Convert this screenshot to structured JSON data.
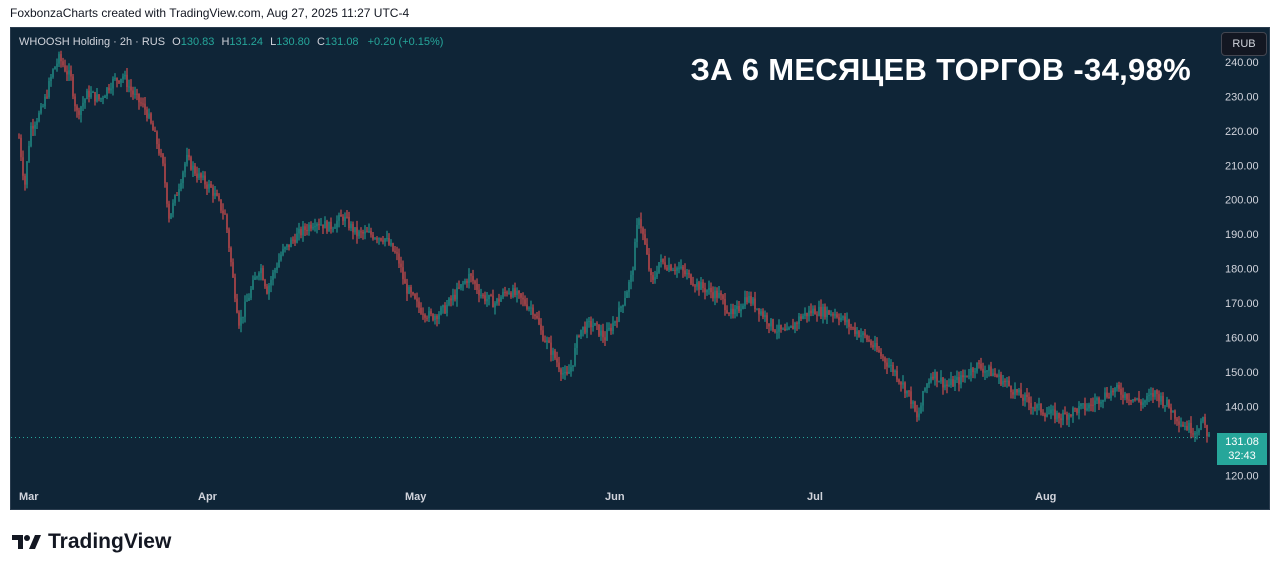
{
  "header": {
    "attribution": "FoxbonzaCharts created with TradingView.com, Aug 27, 2025 11:27 UTC-4"
  },
  "legend": {
    "symbol": "WHOOSH Holding · 2h · RUS",
    "o_label": "O",
    "o_value": "130.83",
    "h_label": "H",
    "h_value": "131.24",
    "l_label": "L",
    "l_value": "130.80",
    "c_label": "C",
    "c_value": "131.08",
    "change": "+0.20 (+0.15%)"
  },
  "headline": "ЗА 6 МЕСЯЦЕВ ТОРГОВ -34,98%",
  "currency_button": "RUB",
  "price_tag": {
    "price": "131.08",
    "countdown": "32:43"
  },
  "footer": {
    "logo_text": "TradingView"
  },
  "colors": {
    "background": "#0f2537",
    "up": "#26a69a",
    "down": "#ef5350",
    "axis_text": "#d1d4dc",
    "last_price_line": "#26a69a"
  },
  "chart_data": {
    "type": "candlestick",
    "title": "WHOOSH Holding · 2h · RUS",
    "y_unit": "RUB",
    "ylim": [
      117,
      244
    ],
    "y_ticks": [
      240,
      230,
      220,
      210,
      200,
      190,
      180,
      170,
      160,
      150,
      140,
      120
    ],
    "y_tick_labels": [
      "240.00",
      "230.00",
      "220.00",
      "210.00",
      "200.00",
      "190.00",
      "180.00",
      "170.00",
      "160.00",
      "150.00",
      "140.00",
      "120.00"
    ],
    "x_labels": [
      "Mar",
      "Apr",
      "May",
      "Jun",
      "Jul",
      "Aug"
    ],
    "last_price": 131.08,
    "grid": false,
    "price_path": [
      {
        "x": "Mar 1",
        "y": 218
      },
      {
        "x": "Mar 2",
        "y": 204
      },
      {
        "x": "Mar 3",
        "y": 221
      },
      {
        "x": "Mar 5",
        "y": 226
      },
      {
        "x": "Mar 7",
        "y": 238
      },
      {
        "x": "Mar 8",
        "y": 241
      },
      {
        "x": "Mar 10",
        "y": 235
      },
      {
        "x": "Mar 11",
        "y": 225
      },
      {
        "x": "Mar 13",
        "y": 231
      },
      {
        "x": "Mar 15",
        "y": 229
      },
      {
        "x": "Mar 17",
        "y": 234
      },
      {
        "x": "Mar 19",
        "y": 236
      },
      {
        "x": "Mar 21",
        "y": 230
      },
      {
        "x": "Mar 23",
        "y": 226
      },
      {
        "x": "Mar 25",
        "y": 216
      },
      {
        "x": "Mar 26",
        "y": 209
      },
      {
        "x": "Mar 27",
        "y": 195
      },
      {
        "x": "Mar 28",
        "y": 200
      },
      {
        "x": "Mar 30",
        "y": 212
      },
      {
        "x": "Apr 1",
        "y": 207
      },
      {
        "x": "Apr 3",
        "y": 203
      },
      {
        "x": "Apr 5",
        "y": 195
      },
      {
        "x": "Apr 6",
        "y": 178
      },
      {
        "x": "Apr 7",
        "y": 164
      },
      {
        "x": "Apr 8",
        "y": 170
      },
      {
        "x": "Apr 10",
        "y": 181
      },
      {
        "x": "Apr 11",
        "y": 174
      },
      {
        "x": "Apr 13",
        "y": 184
      },
      {
        "x": "Apr 15",
        "y": 189
      },
      {
        "x": "Apr 18",
        "y": 194
      },
      {
        "x": "Apr 20",
        "y": 192
      },
      {
        "x": "Apr 22",
        "y": 195
      },
      {
        "x": "Apr 24",
        "y": 190
      },
      {
        "x": "Apr 26",
        "y": 190
      },
      {
        "x": "Apr 28",
        "y": 189
      },
      {
        "x": "Apr 30",
        "y": 183
      },
      {
        "x": "May 1",
        "y": 175
      },
      {
        "x": "May 3",
        "y": 169
      },
      {
        "x": "May 5",
        "y": 166
      },
      {
        "x": "May 7",
        "y": 168
      },
      {
        "x": "May 9",
        "y": 173
      },
      {
        "x": "May 11",
        "y": 178
      },
      {
        "x": "May 13",
        "y": 172
      },
      {
        "x": "May 15",
        "y": 170
      },
      {
        "x": "May 17",
        "y": 174
      },
      {
        "x": "May 19",
        "y": 171
      },
      {
        "x": "May 21",
        "y": 168
      },
      {
        "x": "May 22",
        "y": 162
      },
      {
        "x": "May 24",
        "y": 155
      },
      {
        "x": "May 26",
        "y": 148
      },
      {
        "x": "May 27",
        "y": 153
      },
      {
        "x": "May 28",
        "y": 162
      },
      {
        "x": "May 30",
        "y": 164
      },
      {
        "x": "Jun 1",
        "y": 160
      },
      {
        "x": "Jun 3",
        "y": 167
      },
      {
        "x": "Jun 5",
        "y": 178
      },
      {
        "x": "Jun 6",
        "y": 196
      },
      {
        "x": "Jun 7",
        "y": 186
      },
      {
        "x": "Jun 8",
        "y": 175
      },
      {
        "x": "Jun 9",
        "y": 182
      },
      {
        "x": "Jun 12",
        "y": 180
      },
      {
        "x": "Jun 15",
        "y": 175
      },
      {
        "x": "Jun 18",
        "y": 172
      },
      {
        "x": "Jun 20",
        "y": 166
      },
      {
        "x": "Jun 22",
        "y": 172
      },
      {
        "x": "Jun 24",
        "y": 168
      },
      {
        "x": "Jun 26",
        "y": 163
      },
      {
        "x": "Jun 28",
        "y": 161
      },
      {
        "x": "Jun 30",
        "y": 166
      },
      {
        "x": "Jul 2",
        "y": 168
      },
      {
        "x": "Jul 5",
        "y": 167
      },
      {
        "x": "Jul 7",
        "y": 163
      },
      {
        "x": "Jul 9",
        "y": 160
      },
      {
        "x": "Jul 11",
        "y": 155
      },
      {
        "x": "Jul 13",
        "y": 150
      },
      {
        "x": "Jul 15",
        "y": 143
      },
      {
        "x": "Jul 16",
        "y": 136
      },
      {
        "x": "Jul 17",
        "y": 145
      },
      {
        "x": "Jul 18",
        "y": 150
      },
      {
        "x": "Jul 20",
        "y": 146
      },
      {
        "x": "Jul 22",
        "y": 148
      },
      {
        "x": "Jul 24",
        "y": 152
      },
      {
        "x": "Jul 26",
        "y": 150
      },
      {
        "x": "Jul 28",
        "y": 147
      },
      {
        "x": "Jul 30",
        "y": 143
      },
      {
        "x": "Aug 1",
        "y": 140
      },
      {
        "x": "Aug 3",
        "y": 138
      },
      {
        "x": "Aug 5",
        "y": 137
      },
      {
        "x": "Aug 7",
        "y": 139
      },
      {
        "x": "Aug 9",
        "y": 140
      },
      {
        "x": "Aug 11",
        "y": 143
      },
      {
        "x": "Aug 13",
        "y": 145
      },
      {
        "x": "Aug 15",
        "y": 143
      },
      {
        "x": "Aug 17",
        "y": 141
      },
      {
        "x": "Aug 19",
        "y": 144
      },
      {
        "x": "Aug 21",
        "y": 140
      },
      {
        "x": "Aug 23",
        "y": 135
      },
      {
        "x": "Aug 25",
        "y": 133
      },
      {
        "x": "Aug 26",
        "y": 136
      },
      {
        "x": "Aug 27",
        "y": 131.08
      }
    ]
  }
}
